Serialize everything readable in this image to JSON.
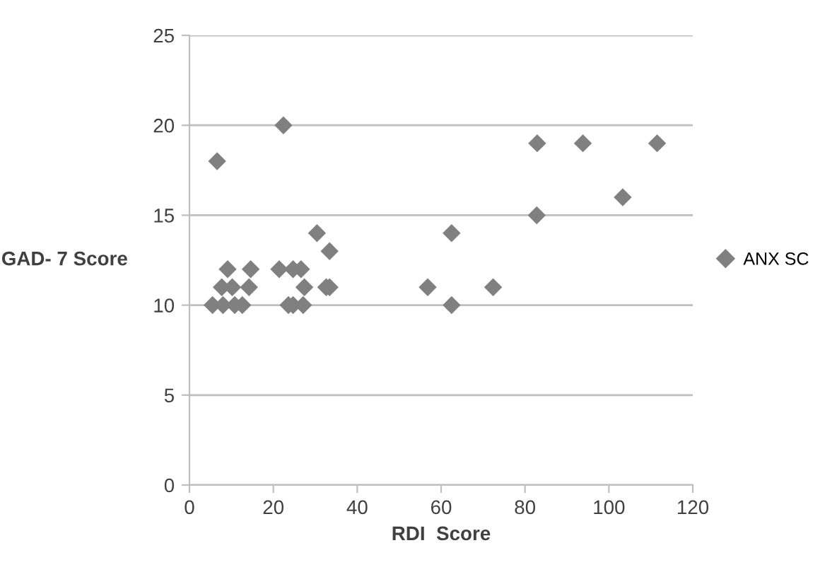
{
  "chart_data": {
    "type": "scatter",
    "xlabel": "RDI  Score",
    "ylabel": "GAD- 7 Score",
    "xlim": [
      0,
      120
    ],
    "xticks": [
      0,
      20,
      40,
      60,
      80,
      100,
      120
    ],
    "ylim": [
      0,
      25
    ],
    "yticks": [
      0,
      5,
      10,
      15,
      20,
      25
    ],
    "grid": "y",
    "legend": "right",
    "marker": "diamond",
    "series": [
      {
        "name": "ANX SC",
        "color": "#808080",
        "x": [
          5.5,
          8,
          10.8,
          12.6,
          23.6,
          24.7,
          27.1,
          62.5,
          7.7,
          10.2,
          14.2,
          27.4,
          32.6,
          33.4,
          56.8,
          72.4,
          9.1,
          14.6,
          21.4,
          24.7,
          26.6,
          30.4,
          33.4,
          62.5,
          82.8,
          103.3,
          6.6,
          82.9,
          93.8,
          111.5,
          22.4
        ],
        "values": [
          10,
          10,
          10,
          10,
          10,
          10,
          10,
          10,
          11,
          11,
          11,
          11,
          11,
          11,
          11,
          11,
          12,
          12,
          12,
          12,
          12,
          14,
          13,
          14,
          15,
          16,
          18,
          19,
          19,
          19,
          20
        ]
      }
    ]
  }
}
